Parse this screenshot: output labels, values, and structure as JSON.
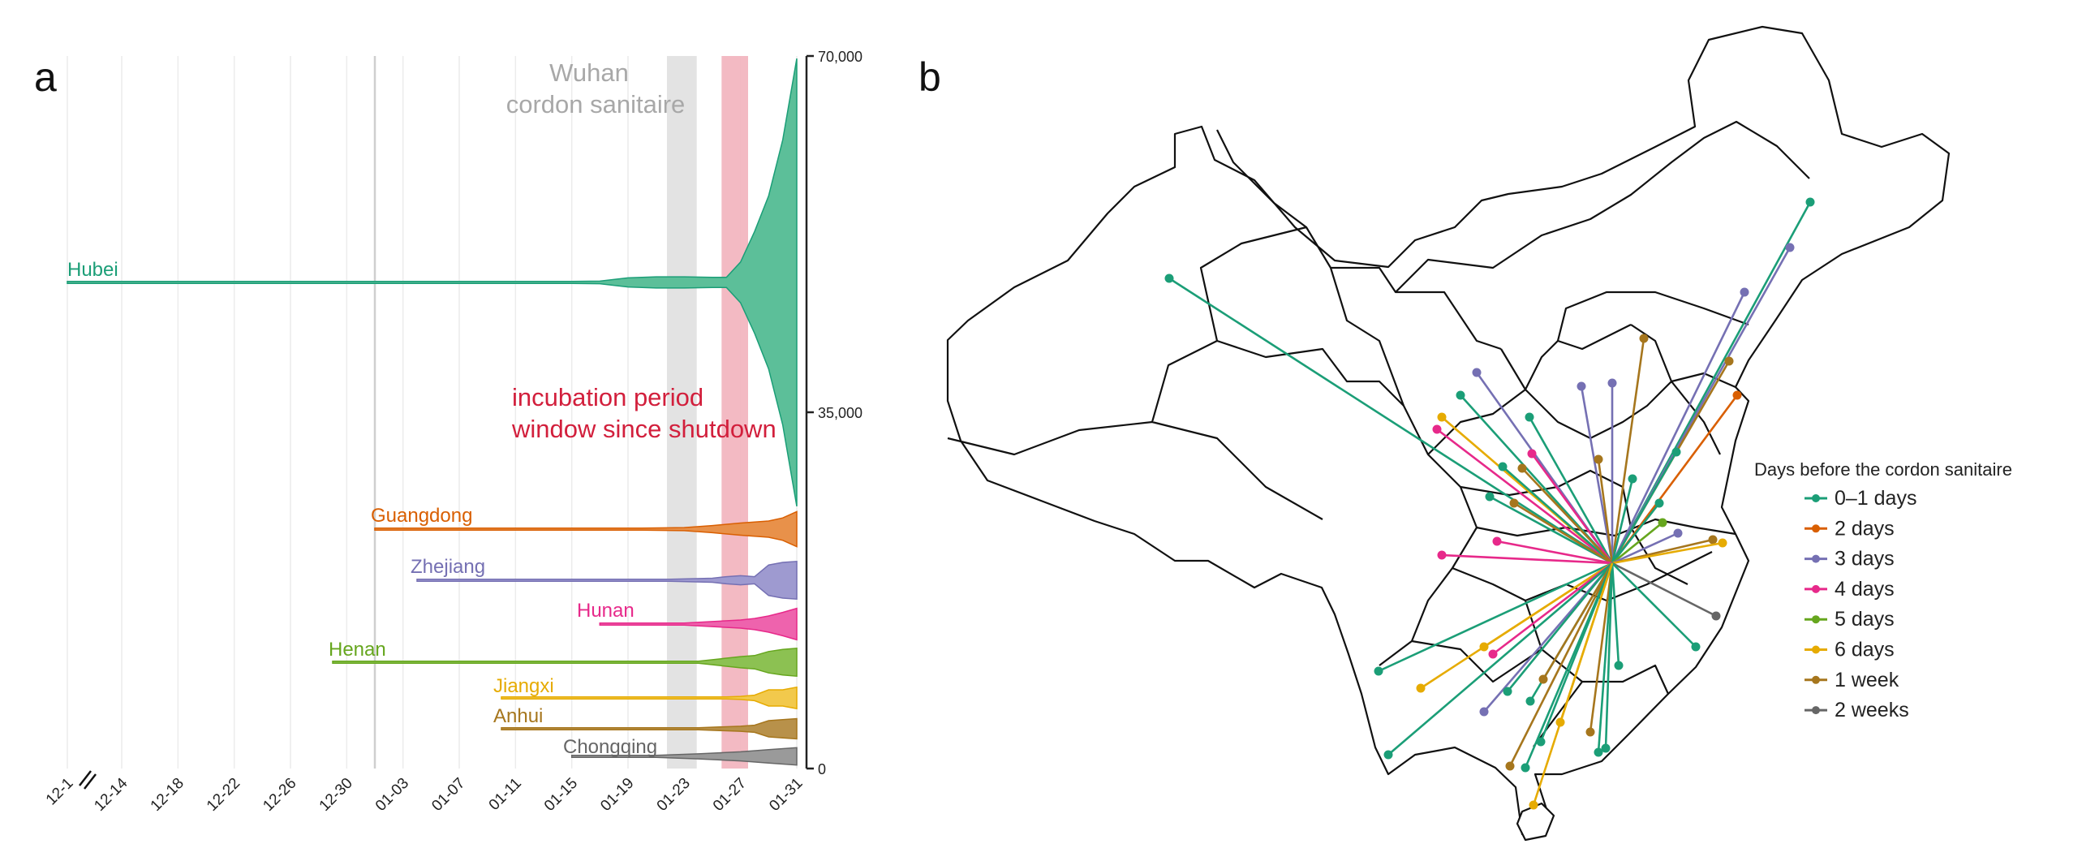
{
  "panel_a": {
    "letter": "a"
  },
  "panel_b": {
    "letter": "b"
  },
  "chart_data": [
    {
      "type": "area",
      "subtype": "streamgraph",
      "title": "",
      "xlabel": "",
      "ylabel": "",
      "x_ticks": [
        "12-1",
        "12-14",
        "12-18",
        "12-22",
        "12-26",
        "12-30",
        "01-03",
        "01-07",
        "01-11",
        "01-15",
        "01-19",
        "01-23",
        "01-27",
        "01-31"
      ],
      "y_ticks": [
        "0",
        "35,000",
        "70,000"
      ],
      "ylim": [
        0,
        70000
      ],
      "grid": true,
      "annotations": {
        "cordon": {
          "line1": "Wuhan",
          "line2": "cordon sanitaire",
          "start": "01-22",
          "end": "01-24",
          "color": "#e3e3e3"
        },
        "incubation": {
          "line1": "incubation period",
          "line2": "window since shutdown",
          "start": "01-26",
          "end": "01-28",
          "color": "#f2b6c0"
        }
      },
      "series": [
        {
          "name": "Hubei",
          "color": "#1b9e77",
          "fill": "#5cbf99",
          "dates": [
            "12-01",
            "01-15",
            "01-17",
            "01-19",
            "01-21",
            "01-23",
            "01-25",
            "01-26",
            "01-27",
            "01-28",
            "01-29",
            "01-30",
            "01-31"
          ],
          "values": [
            150,
            150,
            250,
            900,
            1100,
            1100,
            1000,
            1000,
            4000,
            10000,
            17000,
            28000,
            44000
          ]
        },
        {
          "name": "Guangdong",
          "color": "#d95f02",
          "fill": "#e8914a",
          "dates": [
            "01-01",
            "01-20",
            "01-23",
            "01-25",
            "01-27",
            "01-29",
            "01-30",
            "01-31"
          ],
          "values": [
            150,
            150,
            300,
            700,
            1200,
            1600,
            2200,
            3450
          ]
        },
        {
          "name": "Zhejiang",
          "color": "#7570b3",
          "fill": "#9e9ad0",
          "dates": [
            "01-04",
            "01-22",
            "01-25",
            "01-26",
            "01-27",
            "01-28",
            "01-29",
            "01-30",
            "01-31"
          ],
          "values": [
            150,
            150,
            400,
            700,
            900,
            700,
            3000,
            3500,
            3700
          ]
        },
        {
          "name": "Hunan",
          "color": "#e7298a",
          "fill": "#ee63ad",
          "dates": [
            "01-17",
            "01-23",
            "01-25",
            "01-27",
            "01-28",
            "01-29",
            "01-30",
            "01-31"
          ],
          "values": [
            150,
            150,
            500,
            800,
            1100,
            1600,
            2300,
            3100
          ]
        },
        {
          "name": "Henan",
          "color": "#66a61e",
          "fill": "#8cc152",
          "dates": [
            "12-29",
            "01-24",
            "01-26",
            "01-27",
            "01-28",
            "01-29",
            "01-30",
            "01-31"
          ],
          "values": [
            150,
            150,
            800,
            1100,
            1300,
            2100,
            2500,
            2750
          ]
        },
        {
          "name": "Jiangxi",
          "color": "#e6ab02",
          "fill": "#f2c94c",
          "dates": [
            "01-10",
            "01-26",
            "01-27",
            "01-28",
            "01-29",
            "01-30",
            "01-31"
          ],
          "values": [
            150,
            150,
            300,
            550,
            1600,
            1600,
            2100
          ]
        },
        {
          "name": "Anhui",
          "color": "#a6761d",
          "fill": "#b8914a",
          "dates": [
            "01-10",
            "01-24",
            "01-27",
            "01-28",
            "01-29",
            "01-30",
            "01-31"
          ],
          "values": [
            150,
            200,
            500,
            700,
            1600,
            1800,
            2000
          ]
        },
        {
          "name": "Chongqing",
          "color": "#666666",
          "fill": "#9a9a9a",
          "dates": [
            "01-15",
            "01-21",
            "01-24",
            "01-27",
            "01-29",
            "01-31"
          ],
          "values": [
            150,
            200,
            500,
            900,
            1300,
            1700
          ]
        }
      ]
    },
    {
      "type": "map",
      "title": "",
      "legend": {
        "title": "Days before the cordon sanitaire",
        "placement": "right",
        "items": [
          {
            "label": "0–1 days",
            "color": "#1b9e77"
          },
          {
            "label": "2 days",
            "color": "#d95f02"
          },
          {
            "label": "3 days",
            "color": "#7570b3"
          },
          {
            "label": "4 days",
            "color": "#e7298a"
          },
          {
            "label": "5 days",
            "color": "#66a61e"
          },
          {
            "label": " 6 days",
            "color": "#e6ab02"
          },
          {
            "label": "1 week",
            "color": "#a6761d"
          },
          {
            "label": "2 weeks",
            "color": "#666666"
          }
        ]
      },
      "origin": "Wuhan",
      "connection_counts_by_category": {
        "0–1 days": 23,
        "2 days": 1,
        "3 days": 7,
        "4 days": 5,
        "5 days": 1,
        " 6 days": 6,
        "1 week": 9,
        "2 weeks": 1
      }
    }
  ]
}
